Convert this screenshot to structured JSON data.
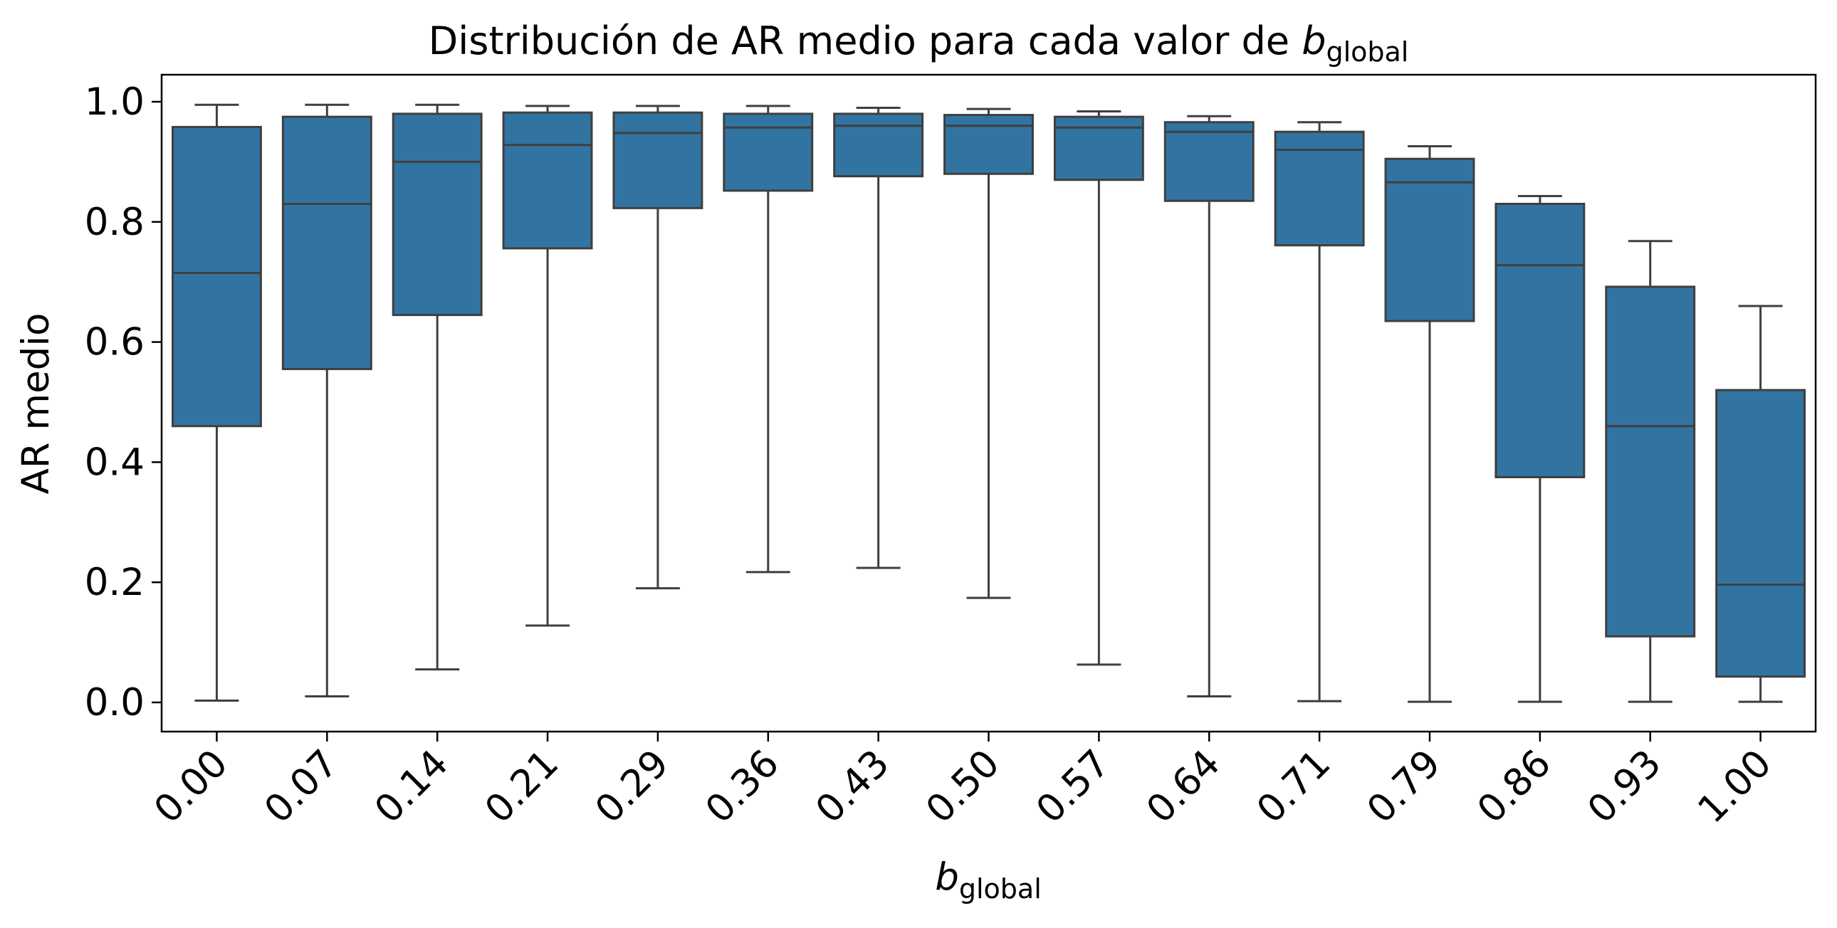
{
  "chart_data": {
    "type": "box",
    "title": {
      "prefix": "Distribución de AR medio para cada valor de ",
      "var": "b",
      "sub": "global"
    },
    "xlabel": {
      "var": "b",
      "sub": "global"
    },
    "ylabel": "AR medio",
    "ylim": [
      -0.05,
      1.04
    ],
    "yticks": [
      "0.0",
      "0.2",
      "0.4",
      "0.6",
      "0.8",
      "1.0"
    ],
    "ytick_values": [
      0.0,
      0.2,
      0.4,
      0.6,
      0.8,
      1.0
    ],
    "categories": [
      "0.00",
      "0.07",
      "0.14",
      "0.21",
      "0.29",
      "0.36",
      "0.43",
      "0.50",
      "0.57",
      "0.64",
      "0.71",
      "0.79",
      "0.86",
      "0.93",
      "1.00"
    ],
    "boxes": [
      {
        "whislo": 0.003,
        "q1": 0.46,
        "med": 0.715,
        "q3": 0.958,
        "whishi": 0.995
      },
      {
        "whislo": 0.01,
        "q1": 0.555,
        "med": 0.83,
        "q3": 0.975,
        "whishi": 0.995
      },
      {
        "whislo": 0.055,
        "q1": 0.645,
        "med": 0.9,
        "q3": 0.98,
        "whishi": 0.995
      },
      {
        "whislo": 0.128,
        "q1": 0.756,
        "med": 0.928,
        "q3": 0.982,
        "whishi": 0.993
      },
      {
        "whislo": 0.19,
        "q1": 0.823,
        "med": 0.948,
        "q3": 0.982,
        "whishi": 0.993
      },
      {
        "whislo": 0.217,
        "q1": 0.852,
        "med": 0.957,
        "q3": 0.98,
        "whishi": 0.993
      },
      {
        "whislo": 0.224,
        "q1": 0.876,
        "med": 0.96,
        "q3": 0.98,
        "whishi": 0.99
      },
      {
        "whislo": 0.174,
        "q1": 0.88,
        "med": 0.96,
        "q3": 0.978,
        "whishi": 0.988
      },
      {
        "whislo": 0.063,
        "q1": 0.87,
        "med": 0.957,
        "q3": 0.975,
        "whishi": 0.984
      },
      {
        "whislo": 0.01,
        "q1": 0.835,
        "med": 0.95,
        "q3": 0.966,
        "whishi": 0.976
      },
      {
        "whislo": 0.002,
        "q1": 0.761,
        "med": 0.92,
        "q3": 0.95,
        "whishi": 0.966
      },
      {
        "whislo": 0.001,
        "q1": 0.635,
        "med": 0.866,
        "q3": 0.905,
        "whishi": 0.926
      },
      {
        "whislo": 0.001,
        "q1": 0.375,
        "med": 0.728,
        "q3": 0.83,
        "whishi": 0.843
      },
      {
        "whislo": 0.001,
        "q1": 0.11,
        "med": 0.46,
        "q3": 0.692,
        "whishi": 0.768
      },
      {
        "whislo": 0.001,
        "q1": 0.043,
        "med": 0.196,
        "q3": 0.52,
        "whishi": 0.66
      }
    ],
    "grid": false,
    "legend": "none",
    "box_color": "#3274a1",
    "line_color": "#3f3f3f"
  }
}
